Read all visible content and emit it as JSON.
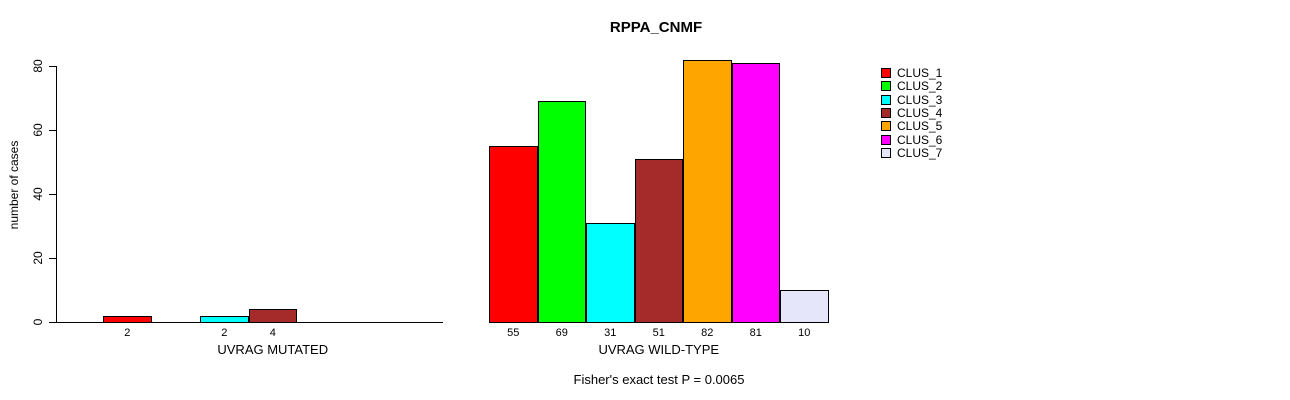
{
  "chart_data": {
    "type": "bar",
    "title": "RPPA_CNMF",
    "ylabel": "number of cases",
    "xlabel": "",
    "ylim": [
      0,
      80
    ],
    "yticks": [
      0,
      20,
      40,
      60,
      80
    ],
    "grid": false,
    "legend_position": "right",
    "legend": [
      {
        "name": "CLUS_1",
        "color": "#FF0000"
      },
      {
        "name": "CLUS_2",
        "color": "#00FF00"
      },
      {
        "name": "CLUS_3",
        "color": "#00FFFF"
      },
      {
        "name": "CLUS_4",
        "color": "#A52A2A"
      },
      {
        "name": "CLUS_5",
        "color": "#FFA500"
      },
      {
        "name": "CLUS_6",
        "color": "#FF00FF"
      },
      {
        "name": "CLUS_7",
        "color": "#E6E6FA"
      }
    ],
    "categories": [
      "CLUS_1",
      "CLUS_2",
      "CLUS_3",
      "CLUS_4",
      "CLUS_5",
      "CLUS_6",
      "CLUS_7"
    ],
    "groups": [
      {
        "label": "UVRAG MUTATED",
        "values": [
          2,
          0,
          2,
          4,
          0,
          0,
          0
        ]
      },
      {
        "label": "UVRAG WILD-TYPE",
        "values": [
          55,
          69,
          31,
          51,
          82,
          81,
          10
        ]
      }
    ],
    "annotation": "Fisher's exact test P = 0.0065"
  }
}
